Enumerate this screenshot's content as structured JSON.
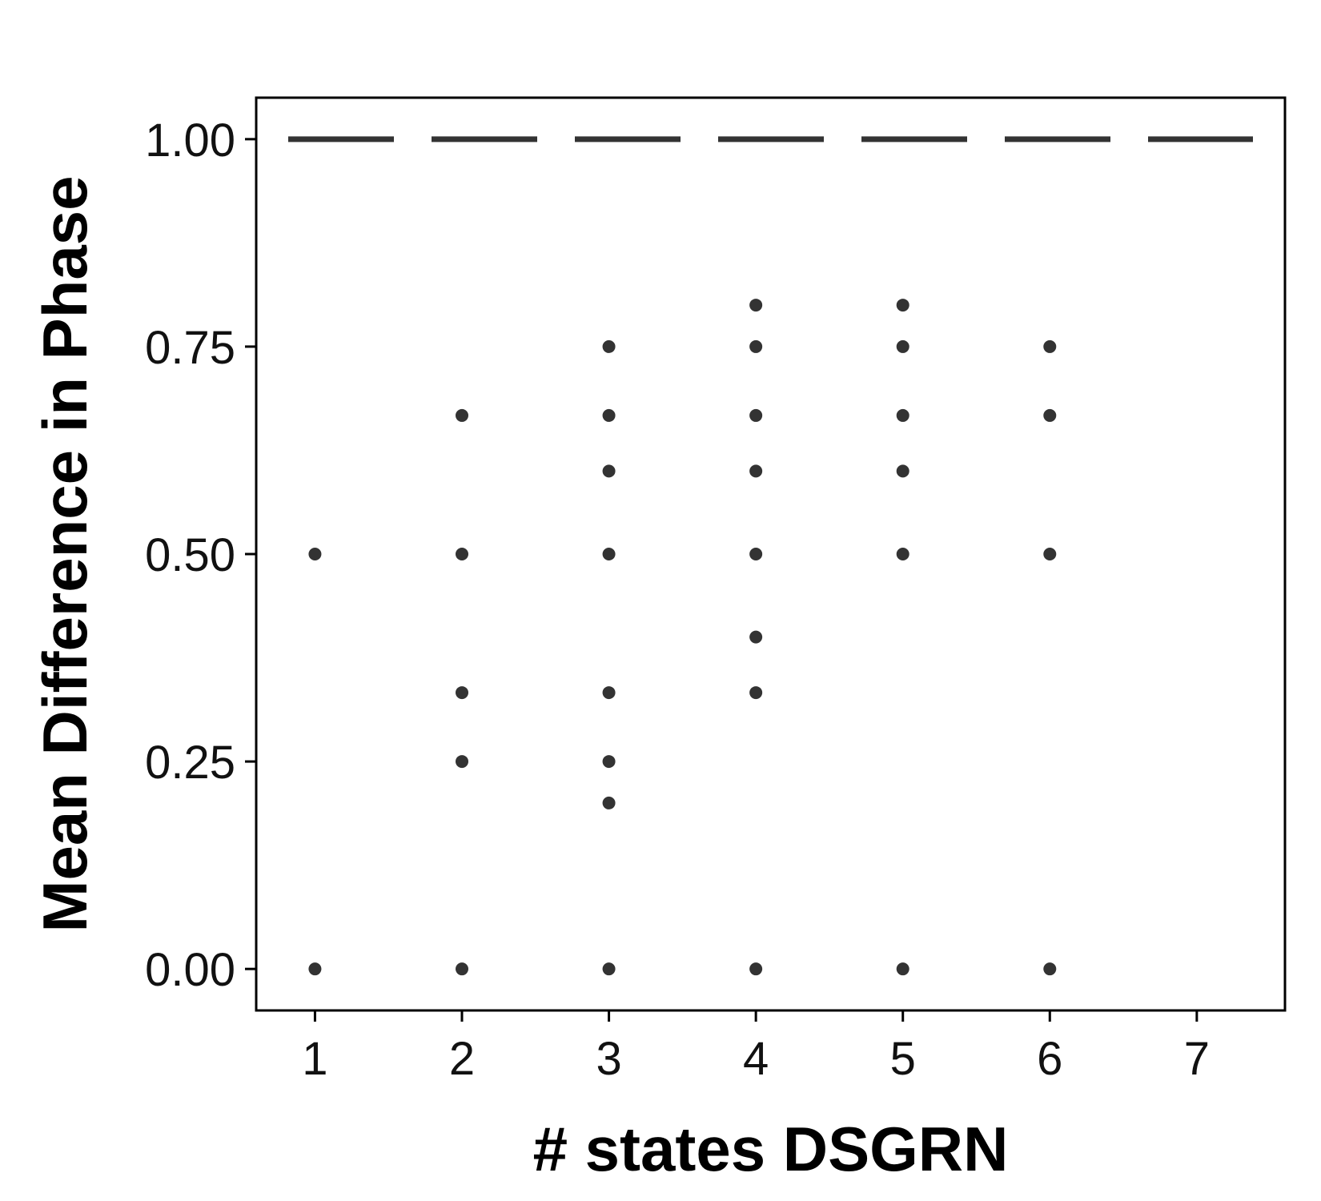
{
  "chart_data": {
    "type": "scatter",
    "title": "",
    "xlabel": "# states DSGRN",
    "ylabel": "Mean Difference in Phase",
    "xlim": [
      0.6,
      7.6
    ],
    "ylim": [
      -0.05,
      1.05
    ],
    "x_ticks": [
      1,
      2,
      3,
      4,
      5,
      6,
      7
    ],
    "x_tick_labels": [
      "1",
      "2",
      "3",
      "4",
      "5",
      "6",
      "7"
    ],
    "y_ticks": [
      0,
      0.25,
      0.5,
      0.75,
      1
    ],
    "y_tick_labels": [
      "0.00",
      "0.25",
      "0.50",
      "0.75",
      "1.00"
    ],
    "grid": false,
    "reference_line": {
      "y": 1.0,
      "style": "dashed",
      "color": "#333333"
    },
    "point_color": "#333333",
    "points": [
      {
        "x": 1,
        "y": 0.5
      },
      {
        "x": 1,
        "y": 0
      },
      {
        "x": 2,
        "y": 0.667
      },
      {
        "x": 2,
        "y": 0.5
      },
      {
        "x": 2,
        "y": 0.333
      },
      {
        "x": 2,
        "y": 0.25
      },
      {
        "x": 2,
        "y": 0
      },
      {
        "x": 3,
        "y": 0.75
      },
      {
        "x": 3,
        "y": 0.667
      },
      {
        "x": 3,
        "y": 0.6
      },
      {
        "x": 3,
        "y": 0.5
      },
      {
        "x": 3,
        "y": 0.333
      },
      {
        "x": 3,
        "y": 0.25
      },
      {
        "x": 3,
        "y": 0.2
      },
      {
        "x": 3,
        "y": 0
      },
      {
        "x": 4,
        "y": 0.8
      },
      {
        "x": 4,
        "y": 0.75
      },
      {
        "x": 4,
        "y": 0.667
      },
      {
        "x": 4,
        "y": 0.6
      },
      {
        "x": 4,
        "y": 0.5
      },
      {
        "x": 4,
        "y": 0.4
      },
      {
        "x": 4,
        "y": 0.333
      },
      {
        "x": 4,
        "y": 0
      },
      {
        "x": 5,
        "y": 0.8
      },
      {
        "x": 5,
        "y": 0.75
      },
      {
        "x": 5,
        "y": 0.667
      },
      {
        "x": 5,
        "y": 0.6
      },
      {
        "x": 5,
        "y": 0.5
      },
      {
        "x": 5,
        "y": 0
      },
      {
        "x": 6,
        "y": 0.75
      },
      {
        "x": 6,
        "y": 0.667
      },
      {
        "x": 6,
        "y": 0.5
      },
      {
        "x": 6,
        "y": 0
      }
    ]
  }
}
